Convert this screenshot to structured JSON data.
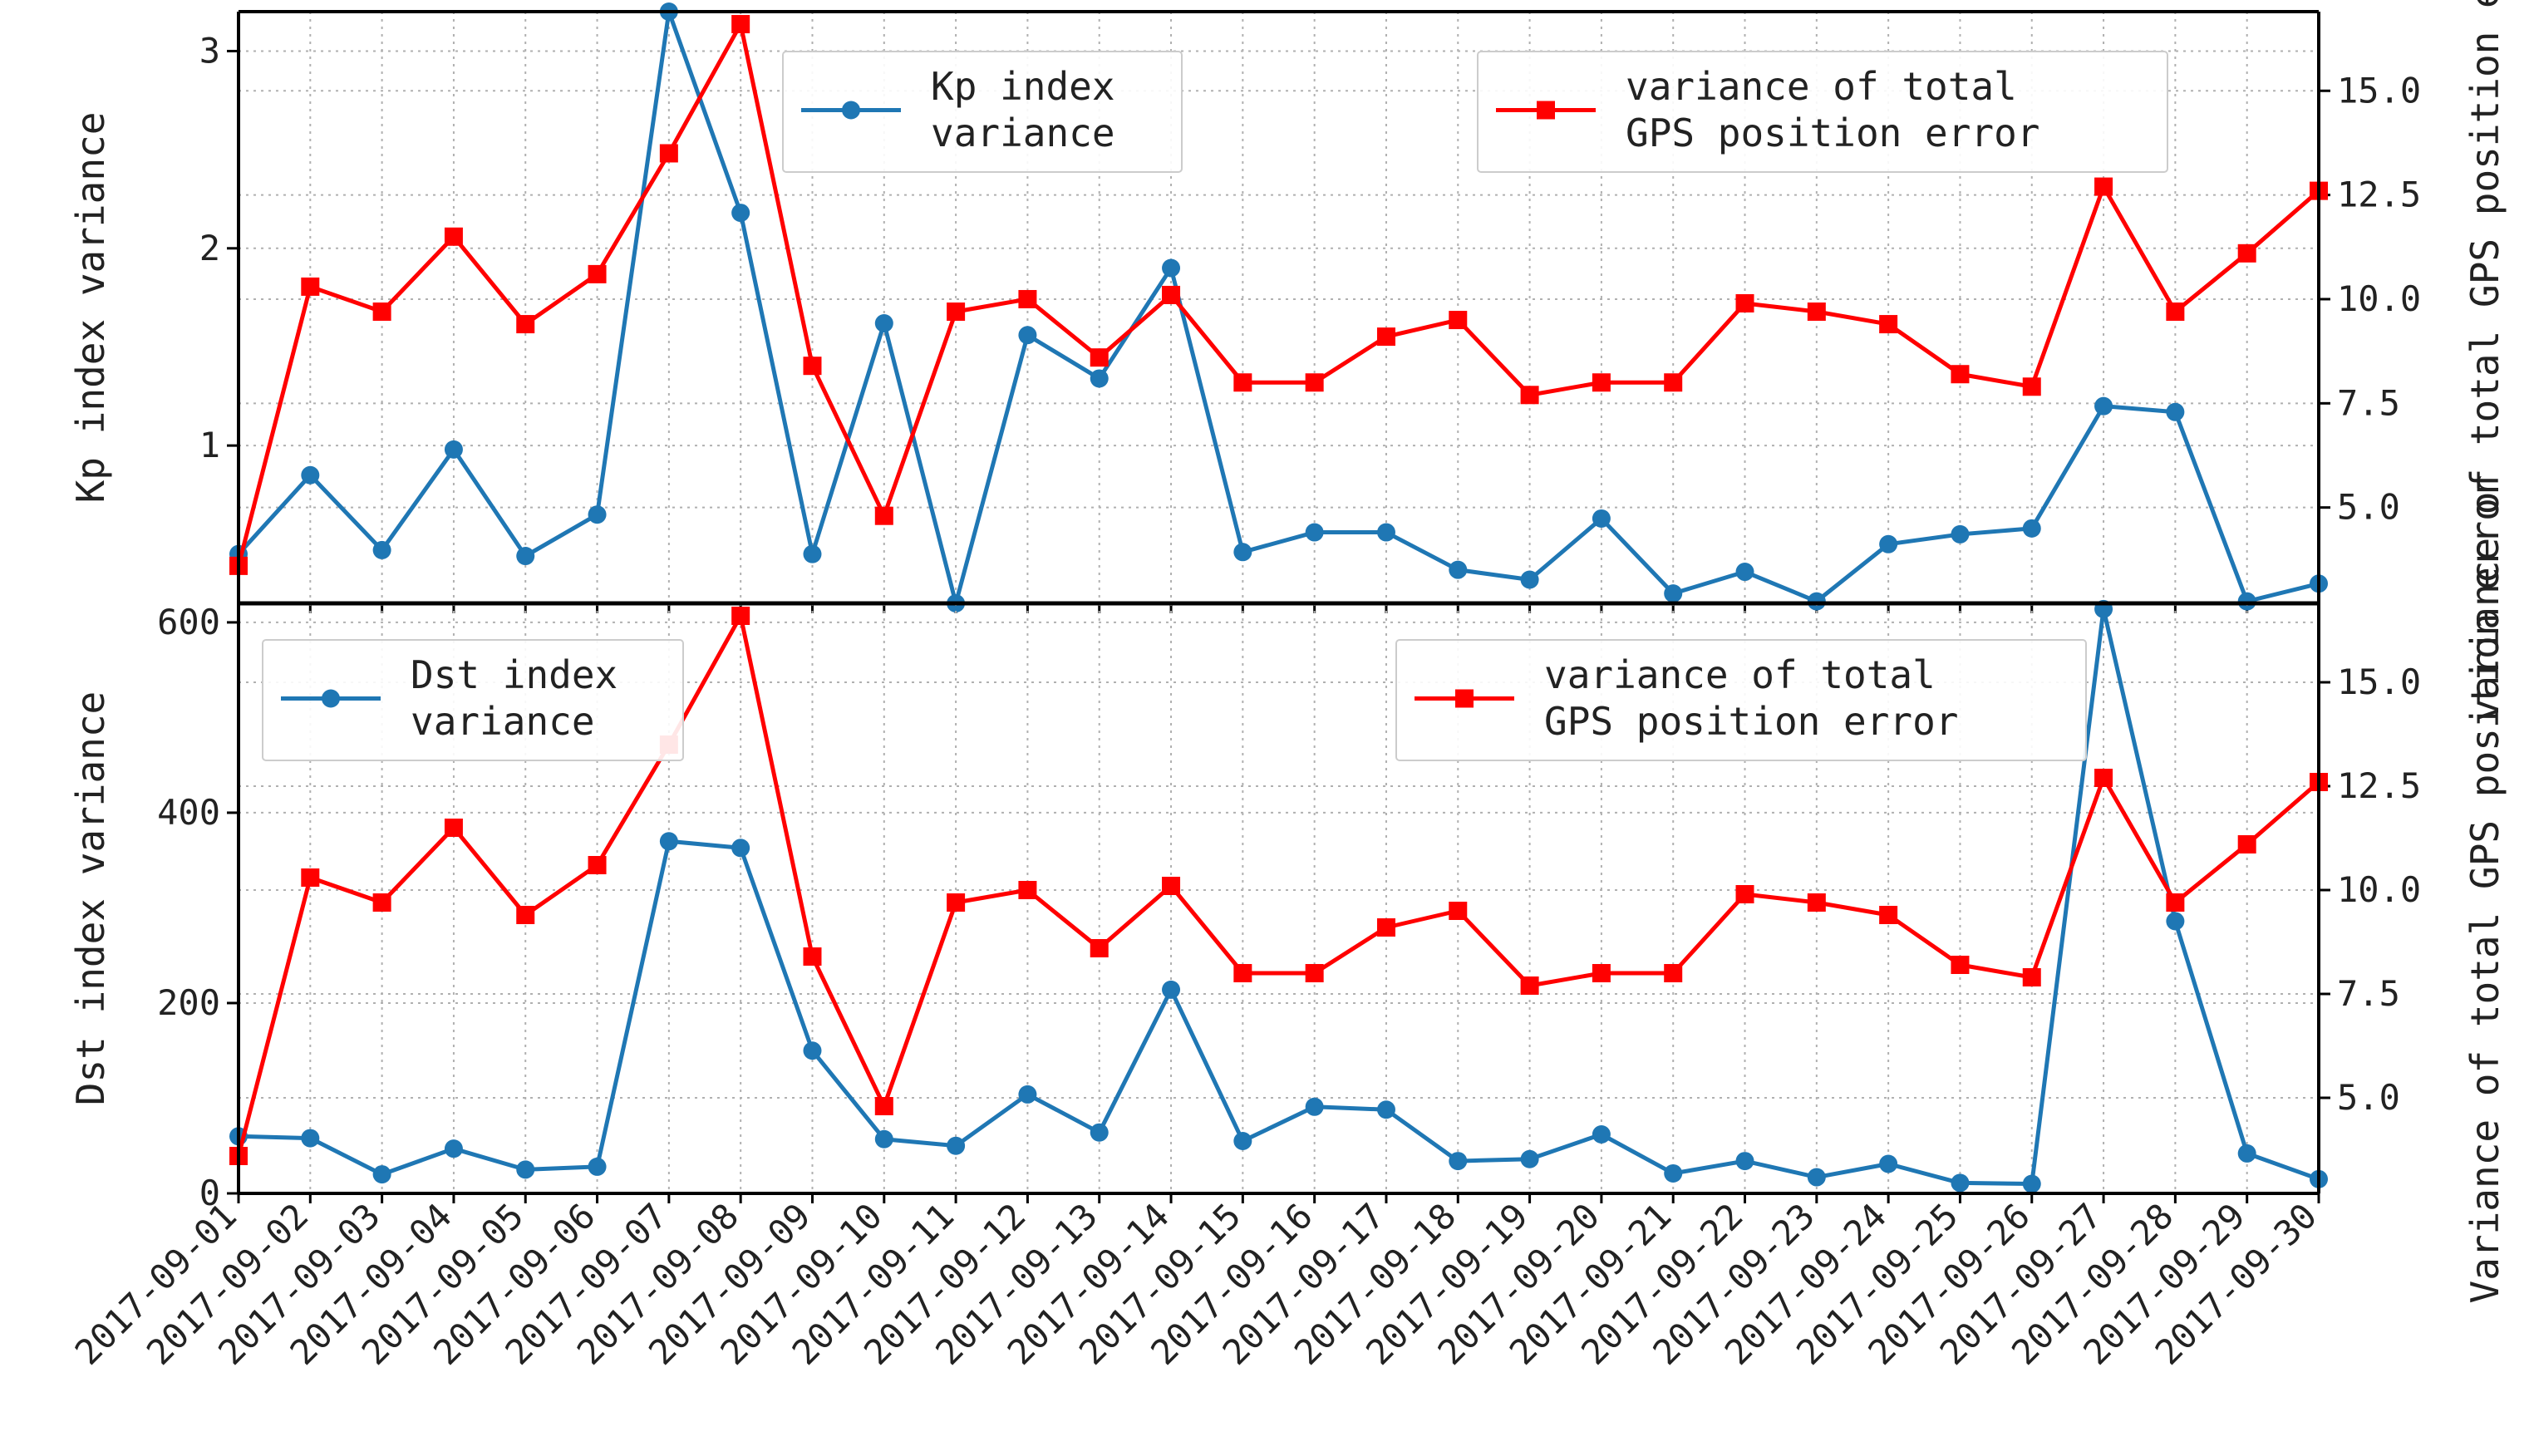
{
  "chart_data": [
    {
      "type": "line",
      "ylabel": "Kp index variance",
      "y2label": "variance of total GPS position error",
      "y_axis_range": [
        0.2,
        3.2
      ],
      "y_ticks": [
        1,
        2,
        3
      ],
      "y2_axis_range": [
        2.7,
        16.9
      ],
      "y2_ticks": [
        5.0,
        7.5,
        10.0,
        12.5,
        15.0
      ],
      "grid": true,
      "legend_left": "Kp index variance",
      "legend_left_lines": [
        "Kp index",
        "variance"
      ],
      "legend_left_position": "upper-center",
      "legend_right": "variance of total GPS position error",
      "legend_right_lines": [
        "variance of total",
        "GPS position error"
      ],
      "legend_right_position": "upper-right",
      "series": [
        {
          "name": "Kp index variance",
          "axis": "left",
          "color": "#1f77b4",
          "marker": "circle",
          "values": [
            0.45,
            0.85,
            0.47,
            0.98,
            0.44,
            0.65,
            3.2,
            2.18,
            0.45,
            1.62,
            0.2,
            1.56,
            1.34,
            1.9,
            0.46,
            0.56,
            0.56,
            0.37,
            0.32,
            0.63,
            0.25,
            0.36,
            0.21,
            0.5,
            0.55,
            0.58,
            1.2,
            1.17,
            0.21,
            0.3
          ]
        },
        {
          "name": "variance of total GPS position error",
          "axis": "right",
          "color": "#ff0000",
          "marker": "square",
          "values": [
            3.6,
            10.3,
            9.7,
            11.5,
            9.4,
            10.6,
            13.5,
            16.6,
            8.4,
            4.8,
            9.7,
            10.0,
            8.6,
            10.1,
            8.0,
            8.0,
            9.1,
            9.5,
            7.7,
            8.0,
            8.0,
            9.9,
            9.7,
            9.4,
            8.2,
            7.9,
            12.7,
            9.7,
            11.1,
            12.6
          ]
        }
      ]
    },
    {
      "type": "line",
      "ylabel": "Dst index variance",
      "y2label": "Variance of total GPS position error",
      "y_axis_range": [
        0,
        620
      ],
      "y_ticks": [
        0,
        200,
        400,
        600
      ],
      "y2_axis_range": [
        2.7,
        16.9
      ],
      "y2_ticks": [
        5.0,
        7.5,
        10.0,
        12.5,
        15.0
      ],
      "grid": true,
      "legend_left": "Dst index variance",
      "legend_left_lines": [
        "Dst index",
        "variance"
      ],
      "legend_left_position": "upper-left",
      "legend_right": "variance of total GPS position error",
      "legend_right_lines": [
        "variance of total",
        "GPS position error"
      ],
      "legend_right_position": "upper-right",
      "series": [
        {
          "name": "Dst index variance",
          "axis": "left",
          "color": "#1f77b4",
          "marker": "circle",
          "values": [
            60,
            58,
            20,
            47,
            25,
            28,
            370,
            363,
            150,
            57,
            50,
            104,
            64,
            214,
            55,
            91,
            88,
            34,
            36,
            62,
            21,
            34,
            17,
            31,
            11,
            10,
            614,
            286,
            42,
            15
          ]
        },
        {
          "name": "variance of total GPS position error",
          "axis": "right",
          "color": "#ff0000",
          "marker": "square",
          "values": [
            3.6,
            10.3,
            9.7,
            11.5,
            9.4,
            10.6,
            13.5,
            16.6,
            8.4,
            4.8,
            9.7,
            10.0,
            8.6,
            10.1,
            8.0,
            8.0,
            9.1,
            9.5,
            7.7,
            8.0,
            8.0,
            9.9,
            9.7,
            9.4,
            8.2,
            7.9,
            12.7,
            9.7,
            11.1,
            12.6
          ]
        }
      ]
    }
  ],
  "x_labels": [
    "2017-09-01",
    "2017-09-02",
    "2017-09-03",
    "2017-09-04",
    "2017-09-05",
    "2017-09-06",
    "2017-09-07",
    "2017-09-08",
    "2017-09-09",
    "2017-09-10",
    "2017-09-11",
    "2017-09-12",
    "2017-09-13",
    "2017-09-14",
    "2017-09-15",
    "2017-09-16",
    "2017-09-17",
    "2017-09-18",
    "2017-09-19",
    "2017-09-20",
    "2017-09-21",
    "2017-09-22",
    "2017-09-23",
    "2017-09-24",
    "2017-09-25",
    "2017-09-26",
    "2017-09-27",
    "2017-09-28",
    "2017-09-29",
    "2017-09-30"
  ]
}
